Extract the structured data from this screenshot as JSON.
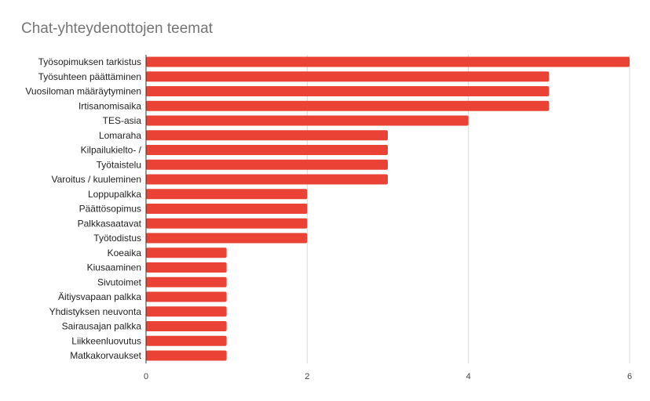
{
  "chart_data": {
    "type": "bar",
    "orientation": "horizontal",
    "title": "Chat-yhteydenottojen teemat",
    "xlabel": "",
    "ylabel": "",
    "categories": [
      "Työsopimuksen tarkistus",
      "Työsuhteen päättäminen",
      "Vuosiloman määräytyminen",
      "Irtisanomisaika",
      "TES-asia",
      "Lomaraha",
      "Kilpailukielto- /",
      "Työtaistelu",
      "Varoitus / kuuleminen",
      "Loppupalkka",
      "Päättösopimus",
      "Palkkasaatavat",
      "Työtodistus",
      "Koeaika",
      "Kiusaaminen",
      "Sivutoimet",
      "Äitiysvapaan palkka",
      "Yhdistyksen neuvonta",
      "Sairausajan palkka",
      "Liikkeenluovutus",
      "Matkakorvaukset"
    ],
    "values": [
      6,
      5,
      5,
      5,
      4,
      3,
      3,
      3,
      3,
      2,
      2,
      2,
      2,
      1,
      1,
      1,
      1,
      1,
      1,
      1,
      1
    ],
    "xlim": [
      0,
      6
    ],
    "xticks": [
      "0",
      "2",
      "4",
      "6"
    ],
    "grid": "vertical",
    "legend": "none",
    "bar_color": "#ea4335",
    "grid_color": "#d9d9d9",
    "axis_color": "#333333"
  }
}
